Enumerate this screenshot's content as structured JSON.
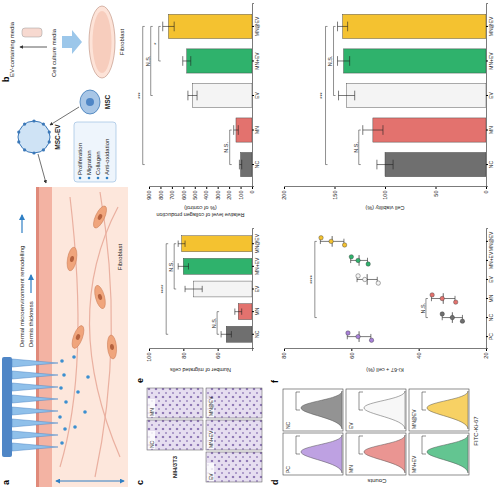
{
  "panel_labels": [
    "a",
    "b",
    "c",
    "d",
    "e",
    "f"
  ],
  "diagram_a": {
    "remodelling": "Dermal microenvironment remodelling",
    "thickness": "Dermis thickness",
    "effects": [
      "Proliferation",
      "Migration",
      "Collagen",
      "Anti-oxidation"
    ],
    "cell_type": "Fibroblast",
    "vesicle": "MSC-EV",
    "stem_cell": "MSC"
  },
  "diagram_b": {
    "product": "EV-containing media",
    "source": "Cell culture media",
    "target": "Fibroblast"
  },
  "micrographs": {
    "cell_line": "NIH/3T3",
    "groups": [
      "NC",
      "MN",
      "EV",
      "MN+EV",
      "MN@EV"
    ]
  },
  "flow": {
    "x_label": "FITC-Ki-67",
    "y_label": "Counts",
    "groups": [
      "PC",
      "NC",
      "MN",
      "EV",
      "MN+EV",
      "MN@EV"
    ],
    "colors": [
      "#a881d8",
      "#6f6f6f",
      "#e3726e",
      "#f4f4f4",
      "#2fb26c",
      "#f4c230"
    ]
  },
  "chart_data": [
    {
      "type": "bar",
      "y_label": [
        "Number of migrated cells"
      ],
      "categories": [
        "NC",
        "MN",
        "EV",
        "MN+EV",
        "MN@EV"
      ],
      "values": [
        55,
        48,
        74,
        80,
        81
      ],
      "errors": [
        3,
        2,
        5,
        3,
        2
      ],
      "colors": [
        "#6f6f6f",
        "#e3726e",
        "#f4f4f4",
        "#2fb26c",
        "#f4c230"
      ],
      "ylim": [
        40,
        100
      ],
      "yticks": [
        60,
        80,
        100
      ],
      "annotations": [
        {
          "text": "N.S.",
          "between": [
            "NC",
            "MN"
          ]
        },
        {
          "text": "N.S.",
          "between": [
            "EV",
            "MN@EV"
          ]
        },
        {
          "text": "****",
          "between": [
            "NC",
            "MN@EV"
          ]
        }
      ]
    },
    {
      "type": "bar",
      "y_label": [
        "Relative level of collagen production",
        "(% of control)"
      ],
      "categories": [
        "NC",
        "MN",
        "EV",
        "MN+EV",
        "MN@EV"
      ],
      "values": [
        100,
        140,
        520,
        570,
        730
      ],
      "errors": [
        10,
        20,
        40,
        35,
        50
      ],
      "colors": [
        "#6f6f6f",
        "#e3726e",
        "#f4f4f4",
        "#2fb26c",
        "#f4c230"
      ],
      "ylim": [
        0,
        900
      ],
      "yticks": [
        0,
        100,
        200,
        300,
        400,
        500,
        600,
        700,
        800,
        900
      ],
      "annotations": [
        {
          "text": "N.S.",
          "between": [
            "NC",
            "MN"
          ]
        },
        {
          "text": "N.S.",
          "between": [
            "EV",
            "MN@EV"
          ]
        },
        {
          "text": "*",
          "between": [
            "MN+EV",
            "MN@EV"
          ]
        },
        {
          "text": "***",
          "between": [
            "NC",
            "MN@EV"
          ]
        }
      ]
    },
    {
      "type": "scatter",
      "y_label": [
        "Ki-67 + cell (%)"
      ],
      "categories": [
        "PC",
        "NC",
        "MN",
        "EV",
        "MN+EV",
        "MN@EV"
      ],
      "points": [
        [
          54,
          58,
          61
        ],
        [
          27,
          30,
          33
        ],
        [
          29,
          33,
          36
        ],
        [
          52,
          56,
          58
        ],
        [
          55,
          58,
          60
        ],
        [
          62,
          66,
          69
        ]
      ],
      "means": [
        57.7,
        30,
        32.7,
        55.3,
        57.7,
        65.7
      ],
      "errors": [
        3.5,
        3,
        3.5,
        3,
        2.5,
        3.5
      ],
      "colors": [
        "#a881d8",
        "#6f6f6f",
        "#e3726e",
        "#f4f4f4",
        "#2fb26c",
        "#f4c230"
      ],
      "ylim": [
        20,
        80
      ],
      "yticks": [
        20,
        40,
        60,
        80
      ],
      "annotations": [
        {
          "text": "N.S.",
          "between": [
            "NC",
            "MN"
          ]
        },
        {
          "text": "****",
          "between": [
            "NC",
            "MN@EV"
          ]
        }
      ]
    },
    {
      "type": "bar",
      "y_label": [
        "Cell viability (%)"
      ],
      "categories": [
        "NC",
        "MN",
        "EV",
        "MN+EV",
        "MN@EV"
      ],
      "values": [
        100,
        112,
        138,
        141,
        142
      ],
      "errors": [
        8,
        10,
        8,
        6,
        5
      ],
      "colors": [
        "#6f6f6f",
        "#e3726e",
        "#f4f4f4",
        "#2fb26c",
        "#f4c230"
      ],
      "ylim": [
        0,
        200
      ],
      "yticks": [
        0,
        50,
        100,
        150,
        200
      ],
      "annotations": [
        {
          "text": "N.S.",
          "between": [
            "NC",
            "MN"
          ]
        },
        {
          "text": "N.S.",
          "between": [
            "EV",
            "MN@EV"
          ]
        },
        {
          "text": "***",
          "between": [
            "NC",
            "MN@EV"
          ]
        }
      ]
    }
  ]
}
